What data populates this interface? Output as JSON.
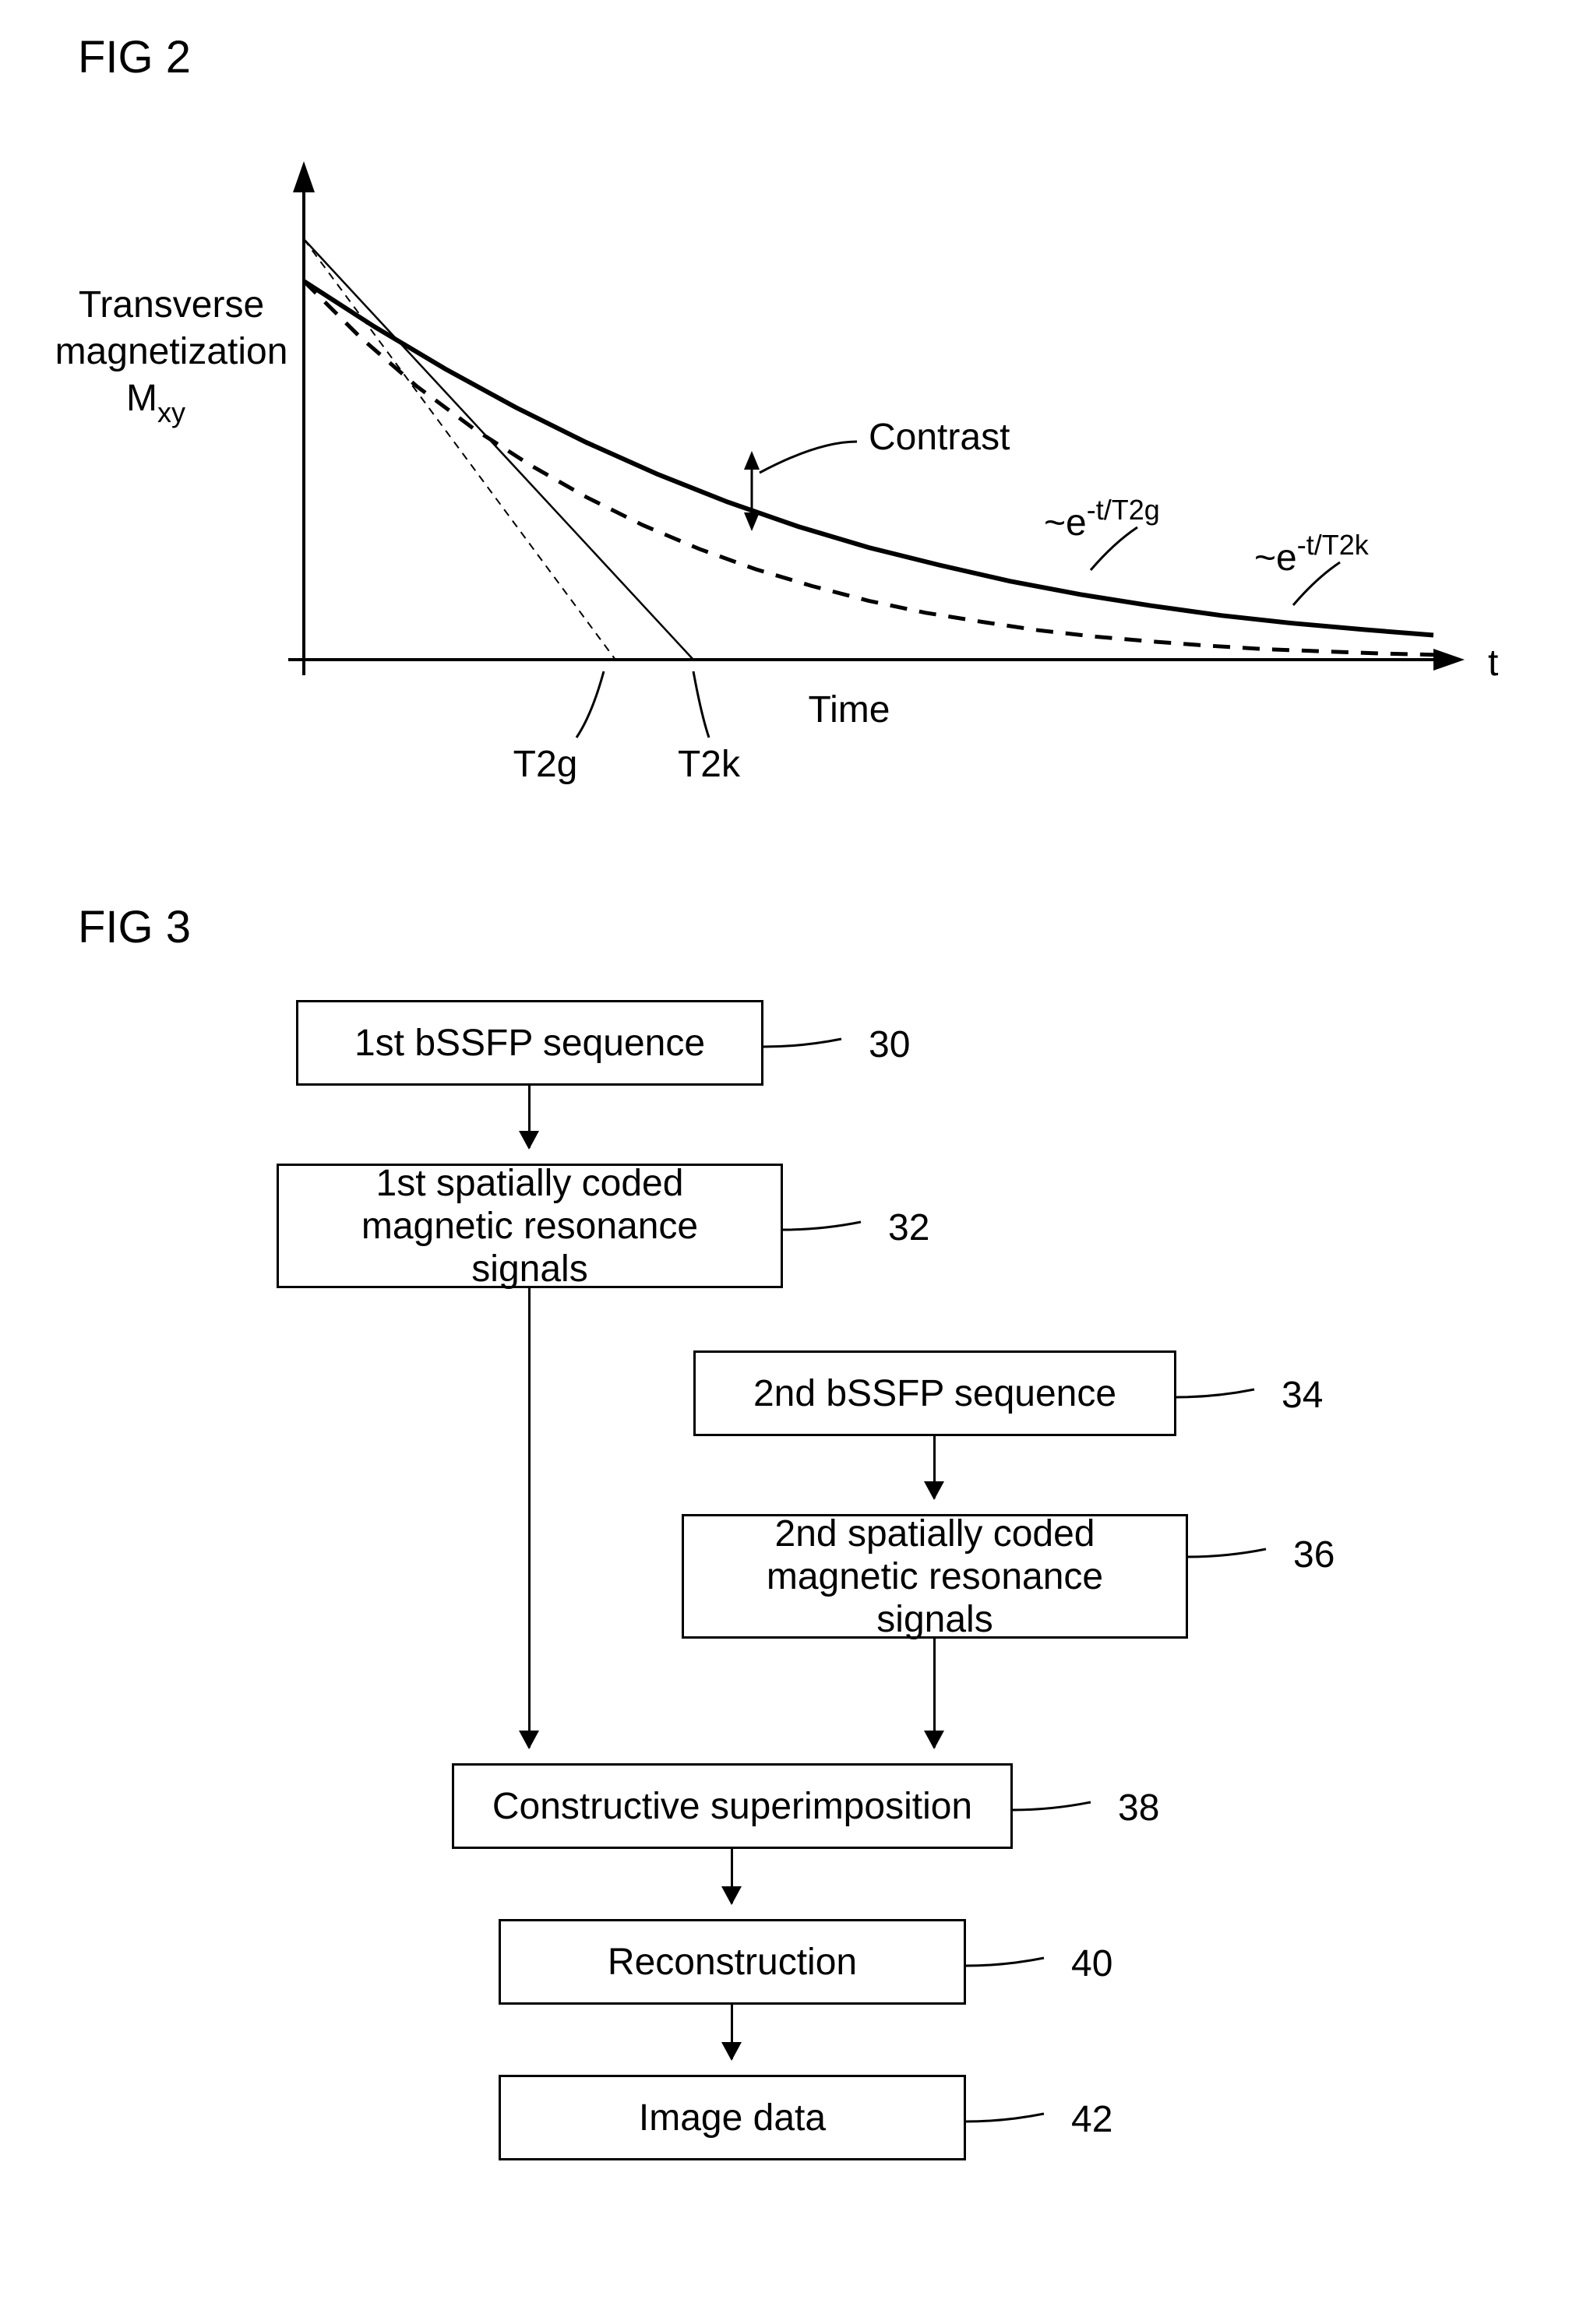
{
  "fig2": {
    "label": "FIG 2",
    "ylabel_line1": "Transverse",
    "ylabel_line2": "magnetization",
    "ylabel_line3": "M",
    "ylabel_sub": "xy",
    "xlabel": "Time",
    "xsymbol": "t",
    "contrast_label": "Contrast",
    "curve1_tilde": "~e",
    "curve1_exp": "-t/T2g",
    "curve2_tilde": "~e",
    "curve2_exp": "-t/T2k",
    "t2g_label": "T2g",
    "t2k_label": "T2k",
    "chart": {
      "axis_color": "#000000",
      "line_width": 3,
      "xlim": [
        0,
        1600
      ],
      "ylim": [
        0,
        600
      ],
      "solid_curve_T2k": [
        [
          0,
          540
        ],
        [
          100,
          475
        ],
        [
          200,
          415
        ],
        [
          300,
          360
        ],
        [
          400,
          310
        ],
        [
          500,
          265
        ],
        [
          600,
          225
        ],
        [
          700,
          190
        ],
        [
          800,
          160
        ],
        [
          900,
          135
        ],
        [
          1000,
          112
        ],
        [
          1100,
          93
        ],
        [
          1200,
          77
        ],
        [
          1300,
          63
        ],
        [
          1400,
          52
        ],
        [
          1500,
          43
        ],
        [
          1600,
          35
        ]
      ],
      "dashed_curve_T2g": [
        [
          0,
          540
        ],
        [
          80,
          460
        ],
        [
          160,
          390
        ],
        [
          240,
          330
        ],
        [
          320,
          278
        ],
        [
          400,
          232
        ],
        [
          480,
          192
        ],
        [
          560,
          158
        ],
        [
          640,
          129
        ],
        [
          720,
          105
        ],
        [
          800,
          84
        ],
        [
          880,
          67
        ],
        [
          960,
          54
        ],
        [
          1040,
          42
        ],
        [
          1120,
          33
        ],
        [
          1200,
          26
        ],
        [
          1280,
          20
        ],
        [
          1360,
          15
        ],
        [
          1440,
          12
        ],
        [
          1520,
          9
        ],
        [
          1600,
          7
        ]
      ],
      "tangent_solid_end": [
        500,
        0
      ],
      "tangent_dashed_end": [
        400,
        0
      ],
      "tangent_start": [
        0,
        540
      ]
    }
  },
  "fig3": {
    "label": "FIG 3",
    "boxes": {
      "b30": {
        "text": "1st bSSFP sequence",
        "ref": "30"
      },
      "b32": {
        "text_l1": "1st spatially coded",
        "text_l2": "magnetic resonance signals",
        "ref": "32"
      },
      "b34": {
        "text": "2nd bSSFP sequence",
        "ref": "34"
      },
      "b36": {
        "text_l1": "2nd spatially coded",
        "text_l2": "magnetic resonance signals",
        "ref": "36"
      },
      "b38": {
        "text": "Constructive superimposition",
        "ref": "38"
      },
      "b40": {
        "text": "Reconstruction",
        "ref": "40"
      },
      "b42": {
        "text": "Image data",
        "ref": "42"
      }
    },
    "box_style": {
      "border_color": "#000000",
      "border_width": 3,
      "background": "#ffffff",
      "font_size": 48
    }
  }
}
